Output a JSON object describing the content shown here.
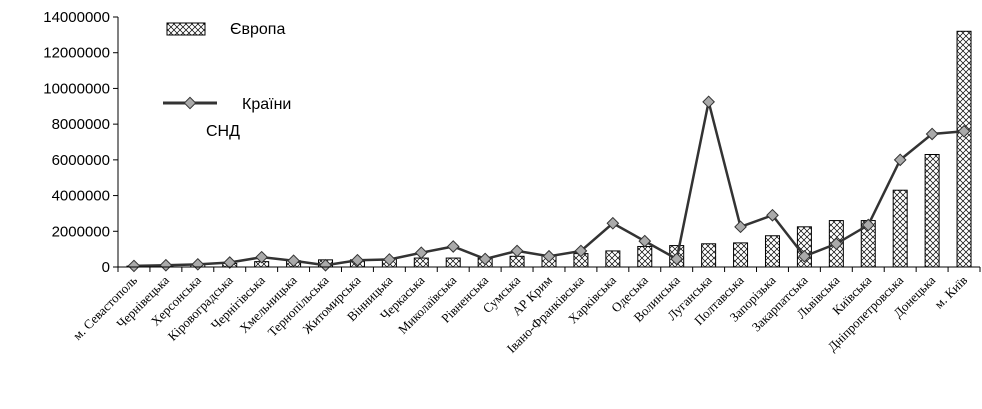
{
  "chart_data": {
    "type": "bar",
    "title": "",
    "xlabel": "",
    "ylabel": "",
    "ylim": [
      0,
      14000000
    ],
    "yticks": [
      0,
      2000000,
      4000000,
      6000000,
      8000000,
      10000000,
      12000000,
      14000000
    ],
    "grid": false,
    "legend_position": "top-left",
    "categories": [
      "м. Севастополь",
      "Чернівецька",
      "Херсонська",
      "Кіровоградська",
      "Чернігівська",
      "Хмельницька",
      "Тернопільська",
      "Житомирська",
      "Вінницька",
      "Черкаська",
      "Миколаївська",
      "Рівненська",
      "Сумська",
      "АР Крим",
      "Івано-Франківська",
      "Харківська",
      "Одеська",
      "Волинська",
      "Луганська",
      "Полтавська",
      "Запорізька",
      "Закарпатська",
      "Львівська",
      "Київська",
      "Дніпропетровська",
      "Донецька",
      "м. Київ"
    ],
    "series": [
      {
        "name": "Європа",
        "kind": "bar",
        "color": "#000000",
        "values": [
          50000,
          80000,
          150000,
          200000,
          300000,
          350000,
          400000,
          400000,
          450000,
          500000,
          500000,
          500000,
          600000,
          650000,
          750000,
          900000,
          1150000,
          1200000,
          1300000,
          1350000,
          1750000,
          2250000,
          2600000,
          2600000,
          4300000,
          6300000,
          13200000
        ]
      },
      {
        "name": "Країни СНД",
        "kind": "line",
        "color": "#333333",
        "values": [
          60000,
          100000,
          150000,
          250000,
          550000,
          350000,
          100000,
          380000,
          420000,
          800000,
          1150000,
          450000,
          900000,
          600000,
          900000,
          2450000,
          1450000,
          450000,
          9250000,
          2250000,
          2900000,
          600000,
          1300000,
          2350000,
          6000000,
          7450000,
          7600000
        ]
      }
    ]
  },
  "legend": {
    "bar_label": "Європа",
    "line_label_1": "Країни",
    "line_label_2": "СНД"
  }
}
